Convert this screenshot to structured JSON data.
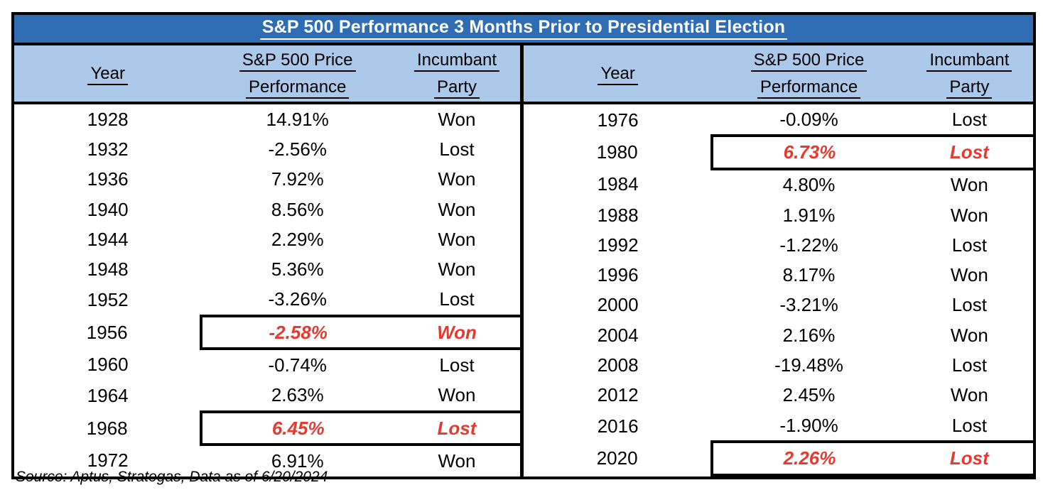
{
  "title": "S&P 500 Performance 3 Months Prior to Presidential Election",
  "source": "Source: Aptus, Strategas, Data as of 6/20/2024",
  "colors": {
    "title_bar_bg": "#2E6DB4",
    "title_text": "#FFFFFF",
    "header_bg": "#ADC9E9",
    "border": "#000000",
    "highlight_text": "#E8392E",
    "body_text": "#000000",
    "page_bg": "#FFFFFF"
  },
  "columns": [
    {
      "key": "year",
      "lines": [
        "Year"
      ]
    },
    {
      "key": "performance",
      "lines": [
        "S&P 500 Price",
        "Performance"
      ]
    },
    {
      "key": "party",
      "lines": [
        "Incumbant",
        "Party"
      ]
    }
  ],
  "tables": [
    {
      "side": "left",
      "rows": [
        {
          "year": "1928",
          "performance": "14.91%",
          "party": "Won",
          "highlighted": false
        },
        {
          "year": "1932",
          "performance": "-2.56%",
          "party": "Lost",
          "highlighted": false
        },
        {
          "year": "1936",
          "performance": "7.92%",
          "party": "Won",
          "highlighted": false
        },
        {
          "year": "1940",
          "performance": "8.56%",
          "party": "Won",
          "highlighted": false
        },
        {
          "year": "1944",
          "performance": "2.29%",
          "party": "Won",
          "highlighted": false
        },
        {
          "year": "1948",
          "performance": "5.36%",
          "party": "Won",
          "highlighted": false
        },
        {
          "year": "1952",
          "performance": "-3.26%",
          "party": "Lost",
          "highlighted": false
        },
        {
          "year": "1956",
          "performance": "-2.58%",
          "party": "Won",
          "highlighted": true
        },
        {
          "year": "1960",
          "performance": "-0.74%",
          "party": "Lost",
          "highlighted": false
        },
        {
          "year": "1964",
          "performance": "2.63%",
          "party": "Won",
          "highlighted": false
        },
        {
          "year": "1968",
          "performance": "6.45%",
          "party": "Lost",
          "highlighted": true
        },
        {
          "year": "1972",
          "performance": "6.91%",
          "party": "Won",
          "highlighted": false
        }
      ]
    },
    {
      "side": "right",
      "rows": [
        {
          "year": "1976",
          "performance": "-0.09%",
          "party": "Lost",
          "highlighted": false
        },
        {
          "year": "1980",
          "performance": "6.73%",
          "party": "Lost",
          "highlighted": true
        },
        {
          "year": "1984",
          "performance": "4.80%",
          "party": "Won",
          "highlighted": false
        },
        {
          "year": "1988",
          "performance": "1.91%",
          "party": "Won",
          "highlighted": false
        },
        {
          "year": "1992",
          "performance": "-1.22%",
          "party": "Lost",
          "highlighted": false
        },
        {
          "year": "1996",
          "performance": "8.17%",
          "party": "Won",
          "highlighted": false
        },
        {
          "year": "2000",
          "performance": "-3.21%",
          "party": "Lost",
          "highlighted": false
        },
        {
          "year": "2004",
          "performance": "2.16%",
          "party": "Won",
          "highlighted": false
        },
        {
          "year": "2008",
          "performance": "-19.48%",
          "party": "Lost",
          "highlighted": false
        },
        {
          "year": "2012",
          "performance": "2.45%",
          "party": "Won",
          "highlighted": false
        },
        {
          "year": "2016",
          "performance": "-1.90%",
          "party": "Lost",
          "highlighted": false
        },
        {
          "year": "2020",
          "performance": "2.26%",
          "party": "Lost",
          "highlighted": true
        }
      ]
    }
  ],
  "chart_data": {
    "type": "table",
    "title": "S&P 500 Performance 3 Months Prior to Presidential Election",
    "columns": [
      "Year",
      "S&P 500 Price Performance",
      "Incumbant Party"
    ],
    "rows": [
      [
        "1928",
        "14.91%",
        "Won"
      ],
      [
        "1932",
        "-2.56%",
        "Lost"
      ],
      [
        "1936",
        "7.92%",
        "Won"
      ],
      [
        "1940",
        "8.56%",
        "Won"
      ],
      [
        "1944",
        "2.29%",
        "Won"
      ],
      [
        "1948",
        "5.36%",
        "Won"
      ],
      [
        "1952",
        "-3.26%",
        "Lost"
      ],
      [
        "1956",
        "-2.58%",
        "Won"
      ],
      [
        "1960",
        "-0.74%",
        "Lost"
      ],
      [
        "1964",
        "2.63%",
        "Won"
      ],
      [
        "1968",
        "6.45%",
        "Lost"
      ],
      [
        "1972",
        "6.91%",
        "Won"
      ],
      [
        "1976",
        "-0.09%",
        "Lost"
      ],
      [
        "1980",
        "6.73%",
        "Lost"
      ],
      [
        "1984",
        "4.80%",
        "Won"
      ],
      [
        "1988",
        "1.91%",
        "Won"
      ],
      [
        "1992",
        "-1.22%",
        "Lost"
      ],
      [
        "1996",
        "8.17%",
        "Won"
      ],
      [
        "2000",
        "-3.21%",
        "Lost"
      ],
      [
        "2004",
        "2.16%",
        "Won"
      ],
      [
        "2008",
        "-19.48%",
        "Lost"
      ],
      [
        "2012",
        "2.45%",
        "Won"
      ],
      [
        "2016",
        "-1.90%",
        "Lost"
      ],
      [
        "2020",
        "2.26%",
        "Lost"
      ]
    ],
    "highlighted_years": [
      "1956",
      "1968",
      "1980",
      "2020"
    ],
    "source": "Source: Aptus, Strategas, Data as of 6/20/2024"
  }
}
